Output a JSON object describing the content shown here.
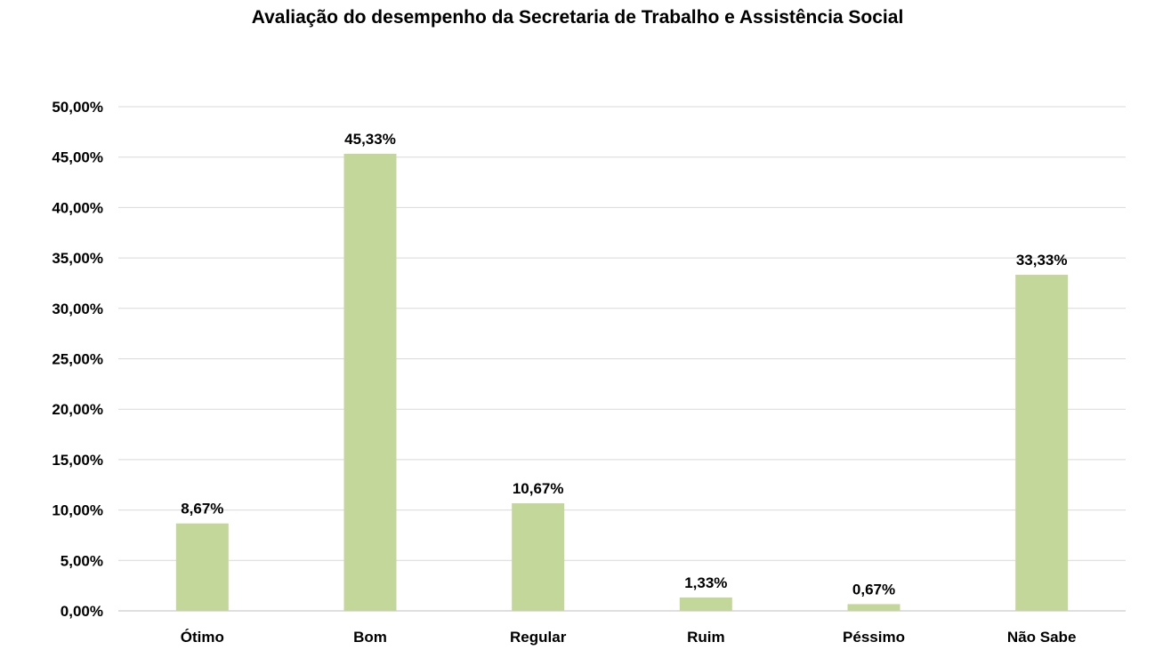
{
  "chart_data": {
    "type": "bar",
    "title": "Avaliação do desempenho da Secretaria de Trabalho e Assistência Social",
    "categories": [
      "Ótimo",
      "Bom",
      "Regular",
      "Ruim",
      "Péssimo",
      "Não Sabe"
    ],
    "values": [
      8.67,
      45.33,
      10.67,
      1.33,
      0.67,
      33.33
    ],
    "data_labels": [
      "8,67%",
      "45,33%",
      "10,67%",
      "1,33%",
      "0,67%",
      "33,33%"
    ],
    "xlabel": "",
    "ylabel": "",
    "ylim": [
      0,
      50
    ],
    "yticks": [
      0,
      5,
      10,
      15,
      20,
      25,
      30,
      35,
      40,
      45,
      50
    ],
    "ytick_labels": [
      "0,00%",
      "5,00%",
      "10,00%",
      "15,00%",
      "20,00%",
      "25,00%",
      "30,00%",
      "35,00%",
      "40,00%",
      "45,00%",
      "50,00%"
    ],
    "grid": true,
    "legend": "none",
    "bar_color": "#c4d79b",
    "grid_color": "#d9d9d9"
  }
}
